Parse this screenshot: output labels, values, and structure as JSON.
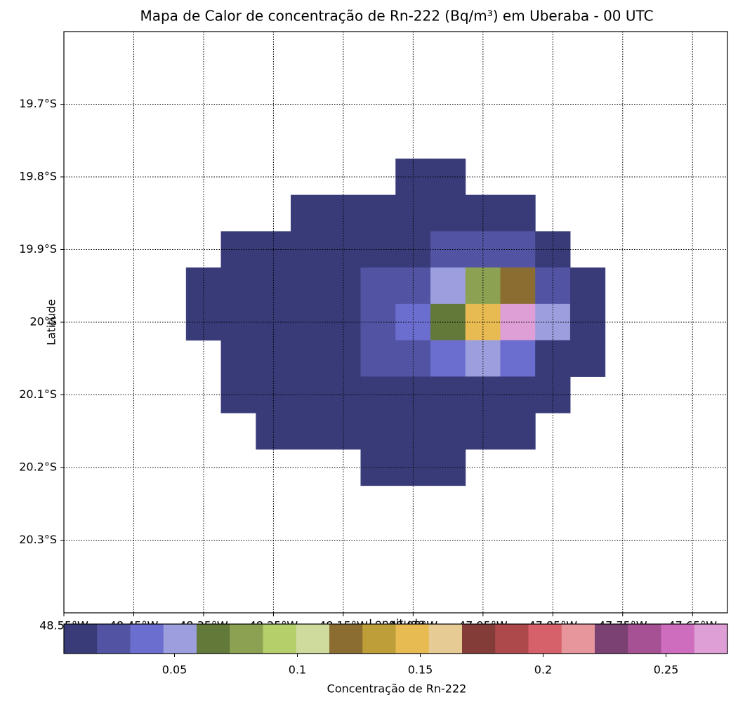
{
  "chart_data": {
    "type": "heatmap",
    "title": "Mapa de Calor de concentração de Rn-222 (Bq/m³) em Uberaba - 00 UTC",
    "x_label": "Longitude",
    "y_label": "Latitude",
    "colorbar_label": "Concentração de Rn-222",
    "x": [
      -48.35,
      -48.3,
      -48.25,
      -48.2,
      -48.15,
      -48.1,
      -48.05,
      -48.0,
      -47.95,
      -47.9,
      -47.85,
      -47.8
    ],
    "y": [
      -19.8,
      -19.85,
      -19.9,
      -19.95,
      -20.0,
      -20.05,
      -20.1,
      -20.15,
      -20.2
    ],
    "values": [
      [
        null,
        null,
        null,
        null,
        null,
        null,
        0.012,
        0.012,
        null,
        null,
        null,
        null
      ],
      [
        null,
        null,
        null,
        0.012,
        0.012,
        0.012,
        0.012,
        0.012,
        0.012,
        0.012,
        null,
        null
      ],
      [
        null,
        0.012,
        0.012,
        0.012,
        0.012,
        0.012,
        0.012,
        0.026,
        0.026,
        0.026,
        0.012,
        null
      ],
      [
        0.012,
        0.012,
        0.012,
        0.012,
        0.012,
        0.026,
        0.026,
        0.053,
        0.08,
        0.12,
        0.026,
        0.012
      ],
      [
        0.012,
        0.012,
        0.012,
        0.012,
        0.012,
        0.026,
        0.04,
        0.066,
        0.147,
        0.275,
        0.053,
        0.012
      ],
      [
        null,
        0.012,
        0.012,
        0.012,
        0.012,
        0.026,
        0.026,
        0.04,
        0.053,
        0.04,
        0.012,
        0.012
      ],
      [
        null,
        0.012,
        0.012,
        0.012,
        0.012,
        0.012,
        0.012,
        0.012,
        0.012,
        0.012,
        0.012,
        null
      ],
      [
        null,
        null,
        0.012,
        0.012,
        0.012,
        0.012,
        0.012,
        0.012,
        0.012,
        0.012,
        null,
        null
      ],
      [
        null,
        null,
        null,
        null,
        null,
        0.012,
        0.012,
        0.012,
        null,
        null,
        null,
        null
      ]
    ],
    "xlim": [
      -48.55,
      -47.6
    ],
    "ylim": [
      -20.4,
      -19.6
    ],
    "xticks": [
      {
        "value": -48.55,
        "label": "48.55°W"
      },
      {
        "value": -48.45,
        "label": "48.45°W"
      },
      {
        "value": -48.35,
        "label": "48.35°W"
      },
      {
        "value": -48.25,
        "label": "48.25°W"
      },
      {
        "value": -48.15,
        "label": "48.15°W"
      },
      {
        "value": -48.05,
        "label": "48.05°W"
      },
      {
        "value": -47.95,
        "label": "47.95°W"
      },
      {
        "value": -47.85,
        "label": "47.85°W"
      },
      {
        "value": -47.75,
        "label": "47.75°W"
      },
      {
        "value": -47.65,
        "label": "47.65°W"
      }
    ],
    "yticks": [
      {
        "value": -19.7,
        "label": "19.7°S"
      },
      {
        "value": -19.8,
        "label": "19.8°S"
      },
      {
        "value": -19.9,
        "label": "19.9°S"
      },
      {
        "value": -20.0,
        "label": "20°S"
      },
      {
        "value": -20.1,
        "label": "20.1°S"
      },
      {
        "value": -20.2,
        "label": "20.2°S"
      },
      {
        "value": -20.3,
        "label": "20.3°S"
      }
    ],
    "grid": true,
    "clim": [
      0.005,
      0.275
    ],
    "cticks": [
      0.05,
      0.1,
      0.15,
      0.2,
      0.25
    ],
    "colors": [
      "#393b79",
      "#5254a3",
      "#6b6ecf",
      "#9c9ede",
      "#637939",
      "#8ca252",
      "#b5cf6b",
      "#cedb9c",
      "#8c6d31",
      "#bd9e39",
      "#e7ba52",
      "#e7cb94",
      "#843c39",
      "#ad494a",
      "#d6616b",
      "#e7969c",
      "#7b4173",
      "#a55194",
      "#ce6dbd",
      "#de9ed6"
    ]
  }
}
